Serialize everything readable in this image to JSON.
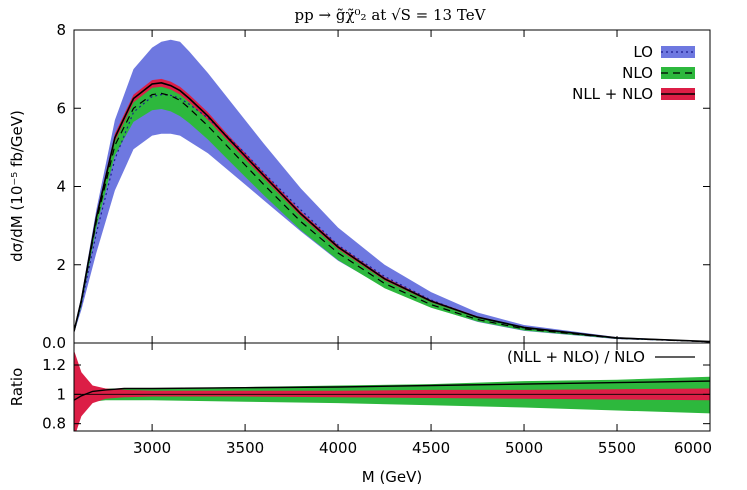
{
  "chart_data": [
    {
      "type": "area",
      "panel": "main",
      "title": "pp → g̃χ̃⁰₂ at √S = 13 TeV",
      "xlabel": "",
      "ylabel": "dσ/dM (10⁻⁵ fb/GeV)",
      "xlim": [
        2580,
        6000
      ],
      "ylim": [
        0,
        8
      ],
      "yticks": [
        "0.0",
        "2",
        "4",
        "6",
        "8"
      ],
      "legend_position": "top-right",
      "x": [
        2580,
        2620,
        2700,
        2800,
        2900,
        3000,
        3050,
        3100,
        3150,
        3200,
        3300,
        3400,
        3500,
        3600,
        3800,
        4000,
        4250,
        4500,
        4750,
        5000,
        5500,
        6000
      ],
      "series": [
        {
          "name": "LO",
          "style": "dotted",
          "line_color": "#1c1c8c",
          "band_color": "#6e78e0",
          "central": [
            0.3,
            1.0,
            2.8,
            4.7,
            5.9,
            6.3,
            6.35,
            6.33,
            6.25,
            6.1,
            5.75,
            5.3,
            4.85,
            4.35,
            3.4,
            2.5,
            1.7,
            1.1,
            0.65,
            0.38,
            0.12,
            0.03
          ],
          "upper": [
            0.35,
            1.2,
            3.4,
            5.7,
            7.0,
            7.55,
            7.7,
            7.75,
            7.7,
            7.45,
            6.9,
            6.3,
            5.7,
            5.1,
            3.95,
            2.95,
            2.0,
            1.3,
            0.78,
            0.46,
            0.15,
            0.04
          ],
          "lower": [
            0.25,
            0.85,
            2.3,
            3.9,
            4.95,
            5.3,
            5.35,
            5.35,
            5.3,
            5.15,
            4.85,
            4.45,
            4.05,
            3.65,
            2.85,
            2.1,
            1.42,
            0.92,
            0.54,
            0.31,
            0.1,
            0.025
          ]
        },
        {
          "name": "NLO",
          "style": "dashed",
          "line_color": "#000000",
          "band_color": "#2db83d",
          "central": [
            0.3,
            1.05,
            3.1,
            5.05,
            6.0,
            6.35,
            6.38,
            6.32,
            6.2,
            6.0,
            5.55,
            5.05,
            4.55,
            4.05,
            3.1,
            2.3,
            1.52,
            0.98,
            0.6,
            0.36,
            0.12,
            0.03
          ],
          "upper": [
            0.35,
            1.15,
            3.25,
            5.25,
            6.25,
            6.6,
            6.62,
            6.55,
            6.42,
            6.22,
            5.75,
            5.25,
            4.75,
            4.25,
            3.28,
            2.45,
            1.65,
            1.08,
            0.67,
            0.4,
            0.14,
            0.035
          ],
          "lower": [
            0.25,
            0.95,
            2.95,
            4.8,
            5.65,
            5.95,
            5.98,
            5.92,
            5.8,
            5.62,
            5.2,
            4.72,
            4.25,
            3.78,
            2.88,
            2.12,
            1.4,
            0.9,
            0.55,
            0.32,
            0.105,
            0.025
          ]
        },
        {
          "name": "NLL + NLO",
          "style": "solid",
          "line_color": "#000000",
          "band_color": "#dc1e46",
          "central": [
            0.3,
            1.1,
            3.2,
            5.25,
            6.25,
            6.62,
            6.65,
            6.58,
            6.45,
            6.25,
            5.8,
            5.28,
            4.78,
            4.28,
            3.3,
            2.45,
            1.64,
            1.07,
            0.66,
            0.4,
            0.13,
            0.035
          ],
          "upper": [
            0.35,
            1.15,
            3.28,
            5.35,
            6.35,
            6.72,
            6.75,
            6.68,
            6.55,
            6.35,
            5.9,
            5.36,
            4.86,
            4.35,
            3.36,
            2.5,
            1.68,
            1.1,
            0.68,
            0.41,
            0.135,
            0.036
          ],
          "lower": [
            0.25,
            1.05,
            3.12,
            5.15,
            6.15,
            6.52,
            6.55,
            6.48,
            6.35,
            6.15,
            5.7,
            5.2,
            4.7,
            4.21,
            3.24,
            2.4,
            1.6,
            1.04,
            0.64,
            0.39,
            0.125,
            0.034
          ]
        }
      ]
    },
    {
      "type": "area",
      "panel": "ratio",
      "xlabel": "M (GeV)",
      "ylabel": "Ratio",
      "xlim": [
        2580,
        6000
      ],
      "ylim": [
        0.75,
        1.35
      ],
      "xticks": [
        "3000",
        "3500",
        "4000",
        "4500",
        "5000",
        "5500",
        "6000"
      ],
      "yticks": [
        "0.8",
        "1",
        "1.2"
      ],
      "legend_position": "top-right",
      "x": [
        2580,
        2620,
        2680,
        2750,
        2850,
        3000,
        3500,
        4000,
        4500,
        5000,
        5500,
        6000
      ],
      "bands": [
        {
          "name": "NLO band",
          "band_color": "#2db83d",
          "upper": [
            1.28,
            1.12,
            1.05,
            1.04,
            1.04,
            1.04,
            1.05,
            1.06,
            1.07,
            1.09,
            1.1,
            1.12
          ],
          "lower": [
            0.72,
            0.88,
            0.95,
            0.96,
            0.96,
            0.96,
            0.95,
            0.94,
            0.925,
            0.91,
            0.89,
            0.87
          ]
        },
        {
          "name": "NLL + NLO band",
          "band_color": "#dc1e46",
          "upper": [
            1.3,
            1.15,
            1.06,
            1.04,
            1.03,
            1.025,
            1.025,
            1.025,
            1.03,
            1.03,
            1.035,
            1.04
          ],
          "lower": [
            0.7,
            0.85,
            0.94,
            0.97,
            0.98,
            0.985,
            0.985,
            0.98,
            0.975,
            0.97,
            0.965,
            0.96
          ]
        }
      ],
      "series": [
        {
          "name": "(NLL + NLO) / NLO",
          "style": "solid",
          "line_color": "#000000",
          "values": [
            0.96,
            0.99,
            1.02,
            1.03,
            1.04,
            1.04,
            1.045,
            1.05,
            1.06,
            1.07,
            1.08,
            1.09
          ]
        }
      ]
    }
  ]
}
